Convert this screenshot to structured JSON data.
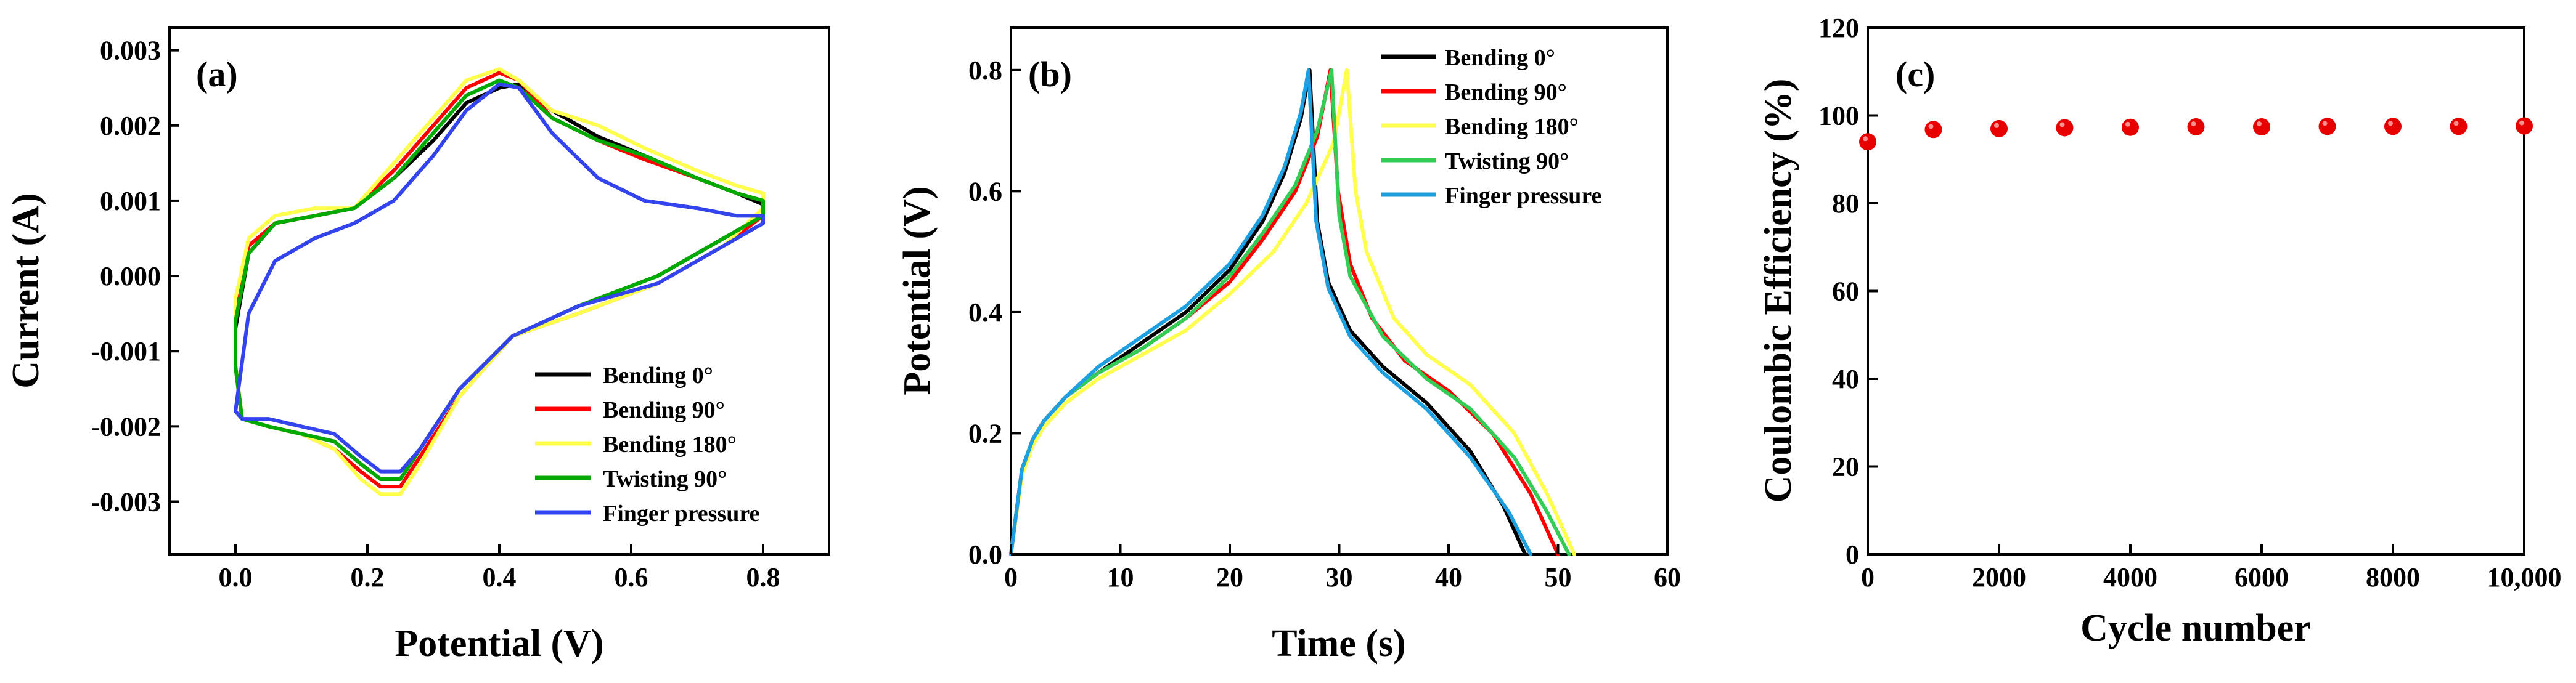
{
  "chart_data": [
    {
      "type": "line",
      "panel_label": "(a)",
      "xlabel": "Potential (V)",
      "ylabel": "Current (A)",
      "xlim": [
        -0.1,
        0.9
      ],
      "ylim": [
        -0.0037,
        0.0033
      ],
      "xticks": [
        0.0,
        0.2,
        0.4,
        0.6,
        0.8
      ],
      "xtick_labels": [
        "0.0",
        "0.2",
        "0.4",
        "0.6",
        "0.8"
      ],
      "yticks": [
        -0.003,
        -0.002,
        -0.001,
        0.0,
        0.001,
        0.002,
        0.003
      ],
      "ytick_labels": [
        "-0.003",
        "-0.002",
        "-0.001",
        "0.000",
        "0.001",
        "0.002",
        "0.003"
      ],
      "legend_position": "bottom-right",
      "series": [
        {
          "name": "Bending 0°",
          "color": "#000000",
          "x": [
            0.0,
            0.02,
            0.06,
            0.12,
            0.18,
            0.24,
            0.3,
            0.35,
            0.4,
            0.43,
            0.48,
            0.55,
            0.62,
            0.7,
            0.76,
            0.8,
            0.8,
            0.74,
            0.64,
            0.52,
            0.42,
            0.34,
            0.28,
            0.25,
            0.22,
            0.19,
            0.15,
            0.1,
            0.05,
            0.01,
            0.0,
            0.0
          ],
          "y": [
            -0.0007,
            0.0003,
            0.0007,
            0.0008,
            0.0009,
            0.0013,
            0.0018,
            0.0023,
            0.0025,
            0.00255,
            0.0022,
            0.00185,
            0.0016,
            0.0013,
            0.0011,
            0.00095,
            0.0008,
            0.0005,
            0.0,
            -0.0004,
            -0.0008,
            -0.0015,
            -0.0023,
            -0.0027,
            -0.0027,
            -0.0025,
            -0.0022,
            -0.0021,
            -0.002,
            -0.0019,
            -0.0012,
            -0.0007
          ]
        },
        {
          "name": "Bending 90°",
          "color": "#ff0000",
          "x": [
            0.0,
            0.02,
            0.06,
            0.12,
            0.18,
            0.24,
            0.3,
            0.35,
            0.4,
            0.43,
            0.48,
            0.55,
            0.62,
            0.7,
            0.76,
            0.8,
            0.8,
            0.74,
            0.64,
            0.52,
            0.42,
            0.34,
            0.28,
            0.25,
            0.22,
            0.19,
            0.15,
            0.1,
            0.05,
            0.01,
            0.0,
            0.0
          ],
          "y": [
            -0.0005,
            0.0004,
            0.0007,
            0.0008,
            0.0009,
            0.0014,
            0.002,
            0.0025,
            0.0027,
            0.0026,
            0.0021,
            0.0018,
            0.00155,
            0.0013,
            0.0011,
            0.001,
            0.0008,
            0.0004,
            -0.0001,
            -0.0005,
            -0.0008,
            -0.0016,
            -0.0024,
            -0.0028,
            -0.0028,
            -0.0026,
            -0.0023,
            -0.0021,
            -0.002,
            -0.0019,
            -0.0012,
            -0.0005
          ]
        },
        {
          "name": "Bending 180°",
          "color": "#ffff4d",
          "x": [
            0.0,
            0.02,
            0.06,
            0.12,
            0.18,
            0.24,
            0.3,
            0.35,
            0.4,
            0.43,
            0.48,
            0.55,
            0.62,
            0.7,
            0.76,
            0.8,
            0.8,
            0.74,
            0.64,
            0.52,
            0.42,
            0.34,
            0.28,
            0.25,
            0.22,
            0.19,
            0.15,
            0.1,
            0.05,
            0.01,
            0.0,
            0.0
          ],
          "y": [
            -0.0003,
            0.0005,
            0.0008,
            0.0009,
            0.0009,
            0.0015,
            0.0021,
            0.0026,
            0.00275,
            0.0026,
            0.0022,
            0.002,
            0.0017,
            0.0014,
            0.0012,
            0.0011,
            0.0009,
            0.0004,
            -0.0001,
            -0.0005,
            -0.0008,
            -0.0016,
            -0.0025,
            -0.0029,
            -0.0029,
            -0.0027,
            -0.0023,
            -0.0021,
            -0.002,
            -0.0019,
            -0.0012,
            -0.0003
          ]
        },
        {
          "name": "Twisting 90°",
          "color": "#00aa00",
          "x": [
            0.0,
            0.02,
            0.06,
            0.12,
            0.18,
            0.24,
            0.3,
            0.35,
            0.4,
            0.43,
            0.48,
            0.55,
            0.62,
            0.7,
            0.76,
            0.8,
            0.8,
            0.74,
            0.64,
            0.52,
            0.42,
            0.34,
            0.28,
            0.25,
            0.22,
            0.19,
            0.15,
            0.1,
            0.05,
            0.01,
            0.0,
            0.0
          ],
          "y": [
            -0.0006,
            0.0003,
            0.0007,
            0.0008,
            0.0009,
            0.0013,
            0.0019,
            0.0024,
            0.0026,
            0.0025,
            0.0021,
            0.0018,
            0.0016,
            0.0013,
            0.0011,
            0.001,
            0.0008,
            0.0005,
            0.0,
            -0.0004,
            -0.0008,
            -0.0015,
            -0.0023,
            -0.0027,
            -0.0027,
            -0.0025,
            -0.0022,
            -0.0021,
            -0.002,
            -0.0019,
            -0.0012,
            -0.0006
          ]
        },
        {
          "name": "Finger pressure",
          "color": "#3344ee",
          "x": [
            0.0,
            0.02,
            0.06,
            0.12,
            0.18,
            0.24,
            0.3,
            0.35,
            0.4,
            0.43,
            0.48,
            0.55,
            0.62,
            0.7,
            0.76,
            0.8,
            0.8,
            0.74,
            0.64,
            0.52,
            0.42,
            0.34,
            0.28,
            0.25,
            0.22,
            0.19,
            0.15,
            0.1,
            0.05,
            0.01,
            0.0,
            0.0
          ],
          "y": [
            -0.0018,
            -0.0005,
            0.0002,
            0.0005,
            0.0007,
            0.001,
            0.0016,
            0.0022,
            0.00255,
            0.0025,
            0.0019,
            0.0013,
            0.001,
            0.0009,
            0.0008,
            0.0008,
            0.0007,
            0.0004,
            -0.0001,
            -0.0004,
            -0.0008,
            -0.0015,
            -0.0023,
            -0.0026,
            -0.0026,
            -0.0024,
            -0.0021,
            -0.002,
            -0.0019,
            -0.0019,
            -0.0018,
            -0.0018
          ]
        }
      ]
    },
    {
      "type": "line",
      "panel_label": "(b)",
      "xlabel": "Time (s)",
      "ylabel": "Potential (V)",
      "xlim": [
        0,
        60
      ],
      "ylim": [
        0,
        0.87
      ],
      "xticks": [
        0,
        10,
        20,
        30,
        40,
        50,
        60
      ],
      "xtick_labels": [
        "0",
        "10",
        "20",
        "30",
        "40",
        "50",
        "60"
      ],
      "yticks": [
        0.0,
        0.2,
        0.4,
        0.6,
        0.8
      ],
      "ytick_labels": [
        "0.0",
        "0.2",
        "0.4",
        "0.6",
        "0.8"
      ],
      "legend_position": "top-right",
      "series": [
        {
          "name": "Bending 0°",
          "color": "#000000",
          "x": [
            0,
            1,
            2,
            3,
            5,
            8,
            12,
            16,
            20,
            23,
            25,
            26.5,
            27.3,
            28.0,
            29.0,
            31.0,
            34.0,
            38.0,
            42.0,
            45.0,
            47.0
          ],
          "y": [
            0,
            0.14,
            0.19,
            0.22,
            0.26,
            0.3,
            0.35,
            0.4,
            0.47,
            0.55,
            0.63,
            0.72,
            0.8,
            0.55,
            0.45,
            0.37,
            0.31,
            0.25,
            0.17,
            0.08,
            0.0
          ]
        },
        {
          "name": "Bending 90°",
          "color": "#ff0000",
          "x": [
            0,
            1,
            2,
            3,
            5,
            8,
            12,
            16,
            20,
            23,
            26,
            28,
            29.2,
            29.9,
            31.0,
            33.0,
            36.0,
            40.0,
            44.0,
            47.5,
            50.0
          ],
          "y": [
            0,
            0.14,
            0.19,
            0.22,
            0.26,
            0.3,
            0.34,
            0.39,
            0.45,
            0.52,
            0.6,
            0.69,
            0.8,
            0.6,
            0.48,
            0.39,
            0.32,
            0.27,
            0.2,
            0.1,
            0.0
          ]
        },
        {
          "name": "Bending 180°",
          "color": "#ffff4d",
          "x": [
            0,
            1,
            2,
            3,
            5,
            8,
            12,
            16,
            20,
            24,
            27,
            29.5,
            30.7,
            31.5,
            32.5,
            35.0,
            38.0,
            42.0,
            46.0,
            49.0,
            51.5
          ],
          "y": [
            0,
            0.13,
            0.18,
            0.21,
            0.25,
            0.29,
            0.33,
            0.37,
            0.43,
            0.5,
            0.58,
            0.68,
            0.8,
            0.6,
            0.5,
            0.39,
            0.33,
            0.28,
            0.2,
            0.1,
            0.0
          ]
        },
        {
          "name": "Twisting 90°",
          "color": "#33cc55",
          "x": [
            0,
            1,
            2,
            3,
            5,
            8,
            12,
            16,
            20,
            23,
            26,
            28,
            29.3,
            30.0,
            31.0,
            34.0,
            38.0,
            42.0,
            46.0,
            49.0,
            51.0
          ],
          "y": [
            0,
            0.14,
            0.19,
            0.22,
            0.26,
            0.3,
            0.34,
            0.39,
            0.46,
            0.53,
            0.61,
            0.7,
            0.8,
            0.56,
            0.46,
            0.36,
            0.29,
            0.24,
            0.16,
            0.07,
            0.0
          ]
        },
        {
          "name": "Finger pressure",
          "color": "#1e9fe0",
          "x": [
            0,
            1,
            2,
            3,
            5,
            8,
            12,
            16,
            20,
            23,
            25,
            26.5,
            27.2,
            27.9,
            29.0,
            31.0,
            34.0,
            38.0,
            42.0,
            45.5,
            47.5
          ],
          "y": [
            0,
            0.14,
            0.19,
            0.22,
            0.26,
            0.31,
            0.36,
            0.41,
            0.48,
            0.56,
            0.64,
            0.73,
            0.8,
            0.55,
            0.44,
            0.36,
            0.3,
            0.24,
            0.16,
            0.07,
            0.0
          ]
        }
      ]
    },
    {
      "type": "scatter",
      "panel_label": "(c)",
      "xlabel": "Cycle number",
      "ylabel": "Coulombic Efficiency (%)",
      "xlim": [
        0,
        10000
      ],
      "ylim": [
        0,
        120
      ],
      "xticks": [
        0,
        2000,
        4000,
        6000,
        8000,
        10000
      ],
      "xtick_labels": [
        "0",
        "2000",
        "4000",
        "6000",
        "8000",
        "10,000"
      ],
      "yticks": [
        0,
        20,
        40,
        60,
        80,
        100,
        120
      ],
      "ytick_labels": [
        "0",
        "20",
        "40",
        "60",
        "80",
        "100",
        "120"
      ],
      "marker_color": "#e60000",
      "x": [
        0,
        1000,
        2000,
        3000,
        4000,
        5000,
        6000,
        7000,
        8000,
        9000,
        10000
      ],
      "y": [
        94.0,
        96.8,
        97.0,
        97.2,
        97.3,
        97.4,
        97.4,
        97.5,
        97.5,
        97.5,
        97.6
      ]
    }
  ]
}
